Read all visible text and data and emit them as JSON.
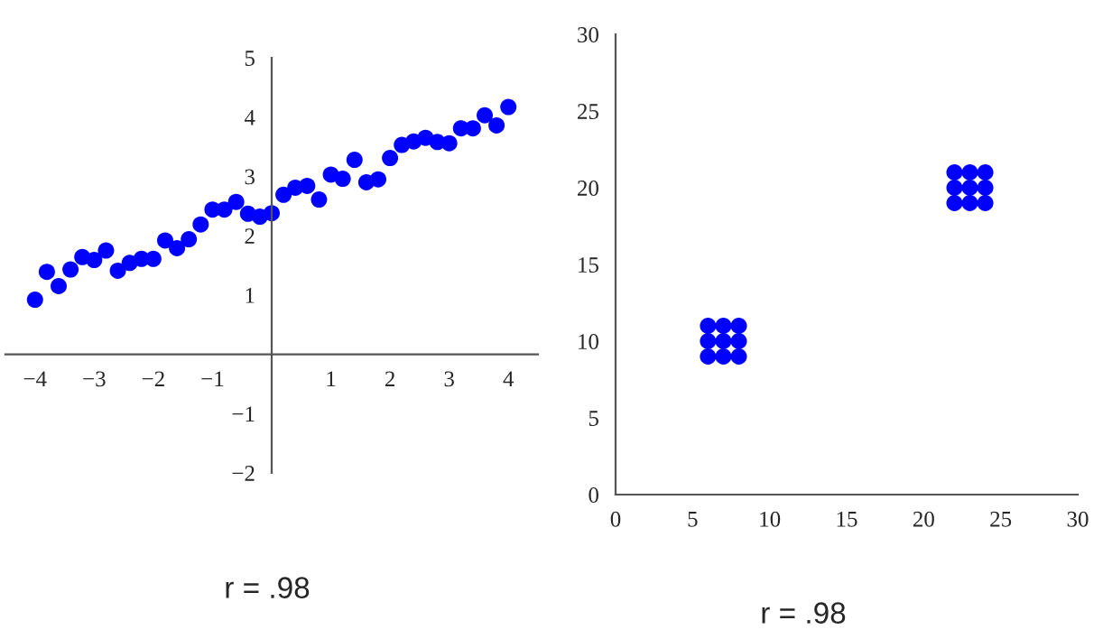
{
  "chart_data": [
    {
      "type": "scatter",
      "marker": "circle",
      "grid": false,
      "xlim": [
        -4.5,
        4.5
      ],
      "ylim": [
        -2,
        5
      ],
      "xticks": [
        -4,
        -3,
        -2,
        -1,
        1,
        2,
        3,
        4
      ],
      "yticks": [
        -2,
        -1,
        1,
        2,
        3,
        4,
        5
      ],
      "annotations": [
        "r = .98"
      ],
      "series": [
        {
          "color": "#0000ff",
          "x": [
            -4,
            -3.8,
            -3.6,
            -3.4,
            -3.2,
            -3,
            -2.8,
            -2.6,
            -2.4,
            -2.2,
            -2,
            -1.8,
            -1.6,
            -1.4,
            -1.2,
            -1,
            -0.8,
            -0.6,
            -0.4,
            -0.2,
            0,
            0.2,
            0.4,
            0.6,
            0.8,
            1,
            1.2,
            1.4,
            1.6,
            1.8,
            2,
            2.2,
            2.4,
            2.6,
            2.8,
            3,
            3.2,
            3.4,
            3.6,
            3.8,
            4
          ],
          "values": [
            0.92,
            1.39,
            1.15,
            1.43,
            1.64,
            1.59,
            1.75,
            1.41,
            1.54,
            1.61,
            1.61,
            1.92,
            1.79,
            1.94,
            2.19,
            2.44,
            2.44,
            2.57,
            2.37,
            2.32,
            2.38,
            2.69,
            2.81,
            2.84,
            2.61,
            3.03,
            2.96,
            3.28,
            2.9,
            2.95,
            3.31,
            3.53,
            3.59,
            3.65,
            3.58,
            3.56,
            3.81,
            3.81,
            4.03,
            3.86,
            4.17
          ]
        }
      ]
    },
    {
      "type": "scatter",
      "marker": "circle",
      "grid": false,
      "xlim": [
        0,
        30
      ],
      "ylim": [
        0,
        30
      ],
      "xticks": [
        0,
        5,
        10,
        15,
        20,
        25,
        30
      ],
      "yticks": [
        0,
        5,
        10,
        15,
        20,
        25,
        30
      ],
      "annotations": [
        "r = .98"
      ],
      "series": [
        {
          "color": "#0000ff",
          "x": [
            6,
            7,
            8,
            6,
            7,
            8,
            6,
            7,
            8,
            22,
            23,
            24,
            22,
            23,
            24,
            22,
            23,
            24
          ],
          "values": [
            9,
            9,
            9,
            10,
            10,
            10,
            11,
            11,
            11,
            19,
            19,
            19,
            20,
            20,
            20,
            21,
            21,
            21
          ]
        }
      ]
    }
  ]
}
